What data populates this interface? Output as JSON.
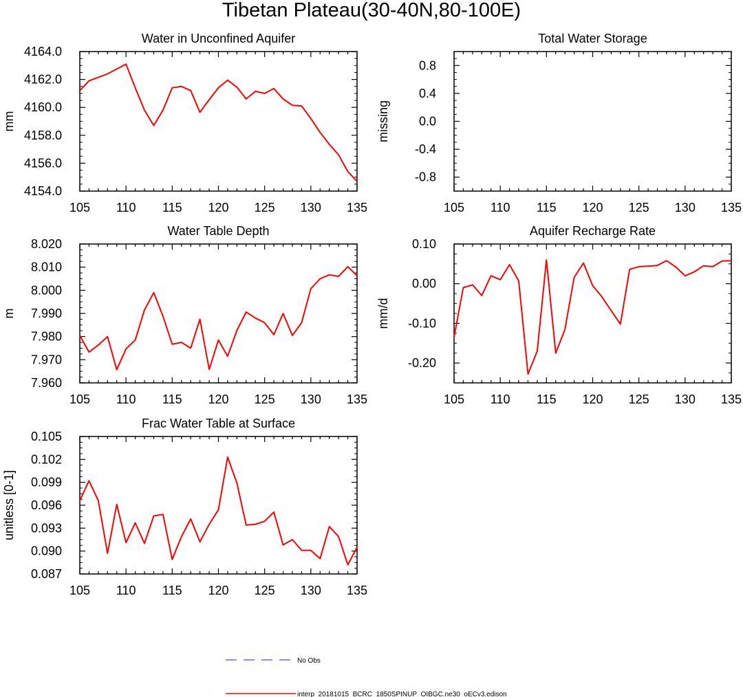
{
  "figure": {
    "title": "Tibetan Plateau(30-40N,80-100E)"
  },
  "legend": {
    "items": [
      {
        "label": "No Obs",
        "color": "#6666ee",
        "dash": true
      },
      {
        "label": "interp_20181015_BCRC_1850SPINUP_OIBGC.ne30_oECv3.edison",
        "color": "#ff0000",
        "dash": false
      }
    ]
  },
  "chart_data": [
    {
      "type": "line",
      "title": "Water in Unconfined Aquifer",
      "ylabel": "mm",
      "xlim": [
        105,
        135
      ],
      "ylim": [
        4154,
        4164
      ],
      "xticks": [
        "105",
        "110",
        "115",
        "120",
        "125",
        "130",
        "135"
      ],
      "yticks": [
        "4154.0",
        "4156.0",
        "4158.0",
        "4160.0",
        "4162.0",
        "4164.0"
      ],
      "series": [
        {
          "color": "#ff0000",
          "x": [
            105,
            106,
            107,
            108,
            109,
            110,
            111,
            112,
            113,
            114,
            115,
            116,
            117,
            118,
            119,
            120,
            121,
            122,
            123,
            124,
            125,
            126,
            127,
            128,
            129,
            130,
            131,
            132,
            133,
            134,
            135
          ],
          "values": [
            4161.2,
            4161.9,
            4162.15,
            4162.4,
            4162.75,
            4163.1,
            4161.4,
            4159.8,
            4158.7,
            4159.8,
            4161.4,
            4161.5,
            4161.2,
            4159.65,
            4160.55,
            4161.4,
            4161.95,
            4161.45,
            4160.6,
            4161.15,
            4161.0,
            4161.35,
            4160.6,
            4160.15,
            4160.1,
            4159.2,
            4158.2,
            4157.35,
            4156.6,
            4155.4,
            4154.7
          ]
        }
      ]
    },
    {
      "type": "line",
      "title": "Total Water Storage",
      "ylabel": "missing",
      "xlim": [
        105,
        135
      ],
      "ylim": [
        -1,
        1
      ],
      "xticks": [
        "105",
        "110",
        "115",
        "120",
        "125",
        "130",
        "135"
      ],
      "yticks": [
        "-0.8",
        "-0.4",
        "0.0",
        "0.4",
        "0.8"
      ],
      "series": []
    },
    {
      "type": "line",
      "title": "Water Table Depth",
      "ylabel": "m",
      "xlim": [
        105,
        135
      ],
      "ylim": [
        7.96,
        8.02
      ],
      "xticks": [
        "105",
        "110",
        "115",
        "120",
        "125",
        "130",
        "135"
      ],
      "yticks": [
        "7.960",
        "7.970",
        "7.980",
        "7.990",
        "8.000",
        "8.010",
        "8.020"
      ],
      "series": [
        {
          "color": "#ff0000",
          "x": [
            105,
            106,
            107,
            108,
            109,
            110,
            111,
            112,
            113,
            114,
            115,
            116,
            117,
            118,
            119,
            120,
            121,
            122,
            123,
            124,
            125,
            126,
            127,
            128,
            129,
            130,
            131,
            132,
            133,
            134,
            135
          ],
          "values": [
            7.9805,
            7.9733,
            7.9763,
            7.98,
            7.9657,
            7.9747,
            7.9785,
            7.9915,
            7.999,
            7.9888,
            7.9767,
            7.9775,
            7.975,
            7.9875,
            7.9658,
            7.9785,
            7.9715,
            7.9827,
            7.9906,
            7.988,
            7.986,
            7.9808,
            7.99,
            7.9805,
            7.986,
            8.0007,
            8.005,
            8.0067,
            8.006,
            8.0102,
            8.0063
          ]
        }
      ]
    },
    {
      "type": "line",
      "title": "Aquifer Recharge Rate",
      "ylabel": "mm/d",
      "xlim": [
        105,
        135
      ],
      "ylim": [
        -0.25,
        0.1
      ],
      "xticks": [
        "105",
        "110",
        "115",
        "120",
        "125",
        "130",
        "135"
      ],
      "yticks": [
        "-0.20",
        "-0.10",
        "0.00",
        "0.10"
      ],
      "series": [
        {
          "color": "#ff0000",
          "x": [
            105,
            106,
            107,
            108,
            109,
            110,
            111,
            112,
            113,
            114,
            115,
            116,
            117,
            118,
            119,
            120,
            121,
            122,
            123,
            124,
            125,
            126,
            127,
            128,
            129,
            130,
            131,
            132,
            133,
            134,
            135
          ],
          "values": [
            -0.135,
            -0.01,
            -0.003,
            -0.03,
            0.02,
            0.01,
            0.048,
            0.007,
            -0.228,
            -0.17,
            0.06,
            -0.175,
            -0.115,
            0.016,
            0.052,
            -0.005,
            -0.033,
            -0.068,
            -0.102,
            0.036,
            0.043,
            0.044,
            0.046,
            0.058,
            0.042,
            0.02,
            0.03,
            0.045,
            0.043,
            0.057,
            0.058
          ]
        }
      ]
    },
    {
      "type": "line",
      "title": "Frac Water Table at Surface",
      "ylabel": "unitless [0-1]",
      "xlim": [
        105,
        135
      ],
      "ylim": [
        0.087,
        0.105
      ],
      "xticks": [
        "105",
        "110",
        "115",
        "120",
        "125",
        "130",
        "135"
      ],
      "yticks": [
        "0.087",
        "0.090",
        "0.093",
        "0.096",
        "0.099",
        "0.102",
        "0.105"
      ],
      "series": [
        {
          "color": "#ff0000",
          "x": [
            105,
            106,
            107,
            108,
            109,
            110,
            111,
            112,
            113,
            114,
            115,
            116,
            117,
            118,
            119,
            120,
            121,
            122,
            123,
            124,
            125,
            126,
            127,
            128,
            129,
            130,
            131,
            132,
            133,
            134,
            135
          ],
          "values": [
            0.0966,
            0.0992,
            0.0966,
            0.0897,
            0.0961,
            0.0911,
            0.0937,
            0.091,
            0.0946,
            0.0948,
            0.0889,
            0.0919,
            0.0942,
            0.0912,
            0.0935,
            0.0954,
            0.1023,
            0.0989,
            0.0934,
            0.0935,
            0.0939,
            0.0951,
            0.0908,
            0.0915,
            0.0901,
            0.0901,
            0.089,
            0.0932,
            0.0919,
            0.0882,
            0.0905
          ]
        }
      ]
    }
  ]
}
